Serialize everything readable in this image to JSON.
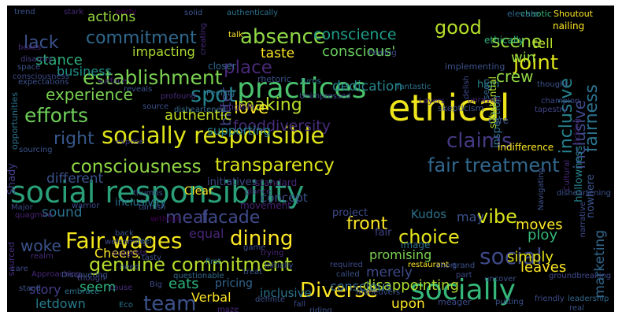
{
  "words": [
    {
      "text": "social responsibility",
      "color": "#2aa07a"
    },
    {
      "text": "ethical",
      "color": "#efe51c"
    },
    {
      "text": "socially responsible",
      "color": "#dfe318"
    },
    {
      "text": "practices",
      "color": "#4ac16d"
    },
    {
      "text": "Fair wages",
      "color": "#f2e51d"
    },
    {
      "text": "genuine commitment",
      "color": "#b5de2b"
    },
    {
      "text": "socially",
      "color": "#35b779"
    },
    {
      "text": "Diverse",
      "color": "#fde725"
    },
    {
      "text": "dining",
      "color": "#fde725"
    },
    {
      "text": "team",
      "color": "#3b528b"
    },
    {
      "text": "social",
      "color": "#3e4a89"
    },
    {
      "text": "absence",
      "color": "#8fd744"
    },
    {
      "text": "establishment",
      "color": "#7ad151"
    },
    {
      "text": "commitment",
      "color": "#31688e"
    },
    {
      "text": "spot",
      "color": "#26828e"
    },
    {
      "text": "claims",
      "color": "#443a83"
    },
    {
      "text": "fair treatment",
      "color": "#31688e"
    },
    {
      "text": "transparency",
      "color": "#dce319"
    },
    {
      "text": "consciousness",
      "color": "#8fd744"
    },
    {
      "text": "efforts",
      "color": "#6ece58"
    },
    {
      "text": "place",
      "color": "#482878"
    },
    {
      "text": "making",
      "color": "#b8de29"
    },
    {
      "text": "fooddiversity",
      "color": "#472d7b"
    },
    {
      "text": "meal",
      "color": "#414487"
    },
    {
      "text": "facade",
      "color": "#3e4a89"
    },
    {
      "text": "front",
      "color": "#fde725"
    },
    {
      "text": "vibe",
      "color": "#d8e219"
    },
    {
      "text": "choice",
      "color": "#e5e419"
    },
    {
      "text": "joint",
      "color": "#dde318"
    },
    {
      "text": "good",
      "color": "#b5de2b"
    },
    {
      "text": "fairness",
      "color": "#2c728e"
    },
    {
      "text": "inclusive",
      "color": "#26828e"
    },
    {
      "text": "woke",
      "color": "#3b528b"
    },
    {
      "text": "right",
      "color": "#38598c"
    },
    {
      "text": "lack",
      "color": "#3b528b"
    },
    {
      "text": "experience",
      "color": "#7ad151"
    },
    {
      "text": "love",
      "color": "#fde725"
    },
    {
      "text": "conscience",
      "color": "#1f9e89"
    },
    {
      "text": "conscious'",
      "color": "#67cc5c"
    },
    {
      "text": "scene",
      "color": "#9fda3a"
    },
    {
      "text": "crew",
      "color": "#8fd744"
    },
    {
      "text": "win",
      "color": "#95d840"
    },
    {
      "text": "stance",
      "color": "#2db27d"
    },
    {
      "text": "actions",
      "color": "#95d840"
    },
    {
      "text": "impacting",
      "color": "#addc30"
    },
    {
      "text": "taste",
      "color": "#fde725"
    },
    {
      "text": "bitter",
      "color": "#404688"
    },
    {
      "text": "dedication",
      "color": "#25848e"
    },
    {
      "text": "inclusive",
      "color": "#3e4989"
    },
    {
      "text": "tell",
      "color": "#b5de2b"
    },
    {
      "text": "business",
      "color": "#21918c"
    },
    {
      "text": "authentic",
      "color": "#c0df25"
    },
    {
      "text": "supporting",
      "color": "#26828e"
    },
    {
      "text": "different",
      "color": "#3b528b"
    },
    {
      "text": "sound",
      "color": "#2c728e"
    },
    {
      "text": "equal",
      "color": "#482475"
    },
    {
      "text": "Cheers",
      "color": "#fde725"
    },
    {
      "text": "seem",
      "color": "#2db27d"
    },
    {
      "text": "story",
      "color": "#433e85"
    },
    {
      "text": "letdown",
      "color": "#287c8e"
    },
    {
      "text": "Verbal",
      "color": "#fde725"
    },
    {
      "text": "eats",
      "color": "#2db27d"
    },
    {
      "text": "pricing",
      "color": "#32658e"
    },
    {
      "text": "merely",
      "color": "#3e4a89"
    },
    {
      "text": "promising",
      "color": "#7ad151"
    },
    {
      "text": "disappointing",
      "color": "#addc30"
    },
    {
      "text": "conscious",
      "color": "#31688e"
    },
    {
      "text": "upon",
      "color": "#fde725"
    },
    {
      "text": "inclusive",
      "color": "#2c728e"
    },
    {
      "text": "ploy",
      "color": "#35b779"
    },
    {
      "text": "moves",
      "color": "#fde725"
    },
    {
      "text": "may",
      "color": "#3b528b"
    },
    {
      "text": "simply",
      "color": "#e5e419"
    },
    {
      "text": "leaves",
      "color": "#fde725"
    },
    {
      "text": "marketing",
      "color": "#31688e"
    },
    {
      "text": "Kudos",
      "color": "#2c728e"
    },
    {
      "text": "concept",
      "color": "#3b528b"
    },
    {
      "text": "standard",
      "color": "#482878"
    },
    {
      "text": "project",
      "color": "#3e4a89"
    },
    {
      "text": "image",
      "color": "#2d708e"
    },
    {
      "text": "fair",
      "color": "#414487"
    },
    {
      "text": "inclusivity",
      "color": "#2c728e"
    },
    {
      "text": "initiatives",
      "color": "#3e4a89"
    },
    {
      "text": "movement",
      "color": "#482475"
    },
    {
      "text": "Clear",
      "color": "#fde725"
    },
    {
      "text": "high",
      "color": "#25848e"
    },
    {
      "text": "inspection",
      "color": "#2c728e"
    },
    {
      "text": "core",
      "color": "#3b528b"
    },
    {
      "text": "hollowness",
      "color": "#26828e"
    },
    {
      "text": "nowhere",
      "color": "#3b528b"
    },
    {
      "text": "indifference",
      "color": "#fde725"
    },
    {
      "text": "Shady",
      "color": "#433e85"
    },
    {
      "text": "sourced",
      "color": "#472d7b"
    },
    {
      "text": "opportunities",
      "color": "#2c728e"
    },
    {
      "text": "closer",
      "color": "#31688e"
    },
    {
      "text": "rhetoric",
      "color": "#3b528b"
    },
    {
      "text": "tangible",
      "color": "#482878"
    },
    {
      "text": "implementing",
      "color": "#3b528b"
    },
    {
      "text": "ethically",
      "color": "#2db27d"
    },
    {
      "text": "nailing",
      "color": "#fde725"
    },
    {
      "text": "substantial",
      "color": "#b5de2b"
    },
    {
      "text": "seen",
      "color": "#31688e"
    },
    {
      "text": "Shoutout",
      "color": "#fde725"
    },
    {
      "text": "chaotic",
      "color": "#35b779"
    },
    {
      "text": "elevate",
      "color": "#31688e"
    },
    {
      "text": "trend",
      "color": "#3b528b"
    },
    {
      "text": "stark",
      "color": "#482878"
    },
    {
      "text": "party",
      "color": "#440154"
    },
    {
      "text": "solid",
      "color": "#3b528b"
    },
    {
      "text": "authentically",
      "color": "#2c728e"
    },
    {
      "text": "Feeling",
      "color": "#3e4a89"
    },
    {
      "text": "talk",
      "color": "#fde725"
    },
    {
      "text": "boxes",
      "color": "#472d7b"
    },
    {
      "text": "disarray",
      "color": "#433e85"
    },
    {
      "text": "space",
      "color": "#3b528b"
    },
    {
      "text": "expectations",
      "color": "#3b528b"
    },
    {
      "text": "consciousness",
      "color": "#3e4a89"
    },
    {
      "text": "surface",
      "color": "#482878"
    },
    {
      "text": "reveals",
      "color": "#3b528b"
    },
    {
      "text": "profound",
      "color": "#472d7b"
    },
    {
      "text": "Peeling",
      "color": "#2c728e"
    },
    {
      "text": "disheartened",
      "color": "#31688e"
    },
    {
      "text": "source",
      "color": "#3b528b"
    },
    {
      "text": "turns",
      "color": "#2c728e"
    },
    {
      "text": "fantastic",
      "color": "#2c728e"
    },
    {
      "text": "unravels",
      "color": "#482878"
    },
    {
      "text": "champion",
      "color": "#3e4a89"
    },
    {
      "text": "skepticism",
      "color": "#3b528b"
    },
    {
      "text": "Layers",
      "color": "#472d7b"
    },
    {
      "text": "delish",
      "color": "#3e4a89"
    },
    {
      "text": "thought",
      "color": "#3b528b"
    },
    {
      "text": "tapestry",
      "color": "#414487"
    },
    {
      "text": "ticking",
      "color": "#482878"
    },
    {
      "text": "Unimpressed",
      "color": "#3e4a89"
    },
    {
      "text": "creating",
      "color": "#472d7b"
    },
    {
      "text": "sourcing",
      "color": "#3b528b"
    },
    {
      "text": "Major",
      "color": "#3e4a89"
    },
    {
      "text": "thumbs",
      "color": "#3b528b"
    },
    {
      "text": "glance",
      "color": "#482878"
    },
    {
      "text": "expose",
      "color": "#433e85"
    },
    {
      "text": "warrior",
      "color": "#3e4a89"
    },
    {
      "text": "quagmire",
      "color": "#482475"
    },
    {
      "text": "tarnish",
      "color": "#3b528b"
    },
    {
      "text": "without",
      "color": "#440154"
    },
    {
      "text": "back",
      "color": "#3b528b"
    },
    {
      "text": "feel",
      "color": "#2c728e"
    },
    {
      "text": "welcoming",
      "color": "#3e4a89"
    },
    {
      "text": "suggests",
      "color": "#482878"
    },
    {
      "text": "tasty",
      "color": "#3b528b"
    },
    {
      "text": "game",
      "color": "#3e4a89"
    },
    {
      "text": "realm",
      "color": "#472d7b"
    },
    {
      "text": "need",
      "color": "#3b528b"
    },
    {
      "text": "care",
      "color": "#3e4a89"
    },
    {
      "text": "Approaching",
      "color": "#482878"
    },
    {
      "text": "Discovering",
      "color": "#3b528b"
    },
    {
      "text": "though",
      "color": "#3e4a89"
    },
    {
      "text": "embrace",
      "color": "#2c728e"
    },
    {
      "text": "stand",
      "color": "#3b528b"
    },
    {
      "text": "cause",
      "color": "#472d7b"
    },
    {
      "text": "Big",
      "color": "#3e4a89"
    },
    {
      "text": "treat",
      "color": "#3b528b"
    },
    {
      "text": "questionable",
      "color": "#31688e"
    },
    {
      "text": "Eco",
      "color": "#2c728e"
    },
    {
      "text": "definite",
      "color": "#3b528b"
    },
    {
      "text": "first",
      "color": "#2c728e"
    },
    {
      "text": "required",
      "color": "#3e4a89"
    },
    {
      "text": "called",
      "color": "#3b528b"
    },
    {
      "text": "restaurant",
      "color": "#fde725"
    },
    {
      "text": "short",
      "color": "#3e4a89"
    },
    {
      "text": "grand",
      "color": "#3b528b"
    },
    {
      "text": "part",
      "color": "#3e4a89"
    },
    {
      "text": "uncover",
      "color": "#3b528b"
    },
    {
      "text": "trying",
      "color": "#482878"
    },
    {
      "text": "Initially",
      "color": "#3b528b"
    },
    {
      "text": "maneuvers",
      "color": "#3b528b"
    },
    {
      "text": "fall",
      "color": "#3e4a89"
    },
    {
      "text": "maze",
      "color": "#482878"
    },
    {
      "text": "riding",
      "color": "#3b528b"
    },
    {
      "text": "meager",
      "color": "#3e4a89"
    },
    {
      "text": "putting",
      "color": "#3b528b"
    },
    {
      "text": "friendly",
      "color": "#3e4a89"
    },
    {
      "text": "leadership",
      "color": "#31688e"
    },
    {
      "text": "real",
      "color": "#3b528b"
    },
    {
      "text": "groundbreaking",
      "color": "#3e4a89"
    },
    {
      "text": "disheartening",
      "color": "#3b528b"
    },
    {
      "text": "Navigating",
      "color": "#3b528b"
    },
    {
      "text": "narrative",
      "color": "#3e4a89"
    },
    {
      "text": "Cultural",
      "color": "#482878"
    }
  ]
}
